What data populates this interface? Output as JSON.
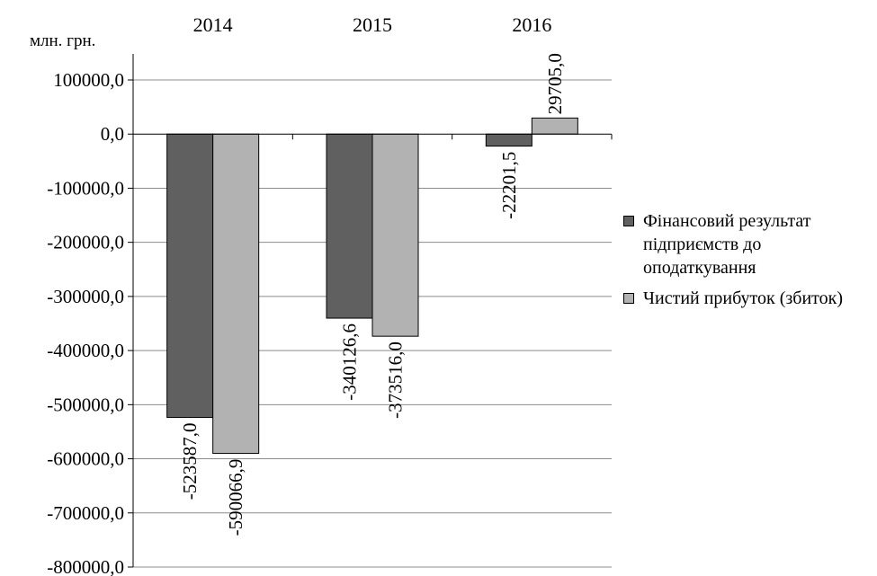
{
  "chart_data": {
    "type": "bar",
    "unit_label": "млн. грн.",
    "categories": [
      "2014",
      "2015",
      "2016"
    ],
    "series": [
      {
        "name": "Фінансовий результат підприємств до оподаткування",
        "values": [
          -523587.0,
          -340126.6,
          -22201.5
        ],
        "labels": [
          "-523587,0",
          "-340126,6",
          "-22201,5"
        ],
        "color": "#606060"
      },
      {
        "name": "Чистий прибуток (збиток)",
        "values": [
          -590066.9,
          -373516.0,
          29705.0
        ],
        "labels": [
          "-590066,9",
          "-373516,0",
          "29705,0"
        ],
        "color": "#b2b2b2"
      }
    ],
    "ylim": [
      -800000,
      100000
    ],
    "yticks": [
      100000,
      0,
      -100000,
      -200000,
      -300000,
      -400000,
      -500000,
      -600000,
      -700000,
      -800000
    ],
    "ytick_labels": [
      "100000,0",
      "0,0",
      "-100000,0",
      "-200000,0",
      "-300000,0",
      "-400000,0",
      "-500000,0",
      "-600000,0",
      "-700000,0",
      "-800000,0"
    ],
    "grid": true,
    "legend_position": "right",
    "category_axis_position": "top"
  }
}
